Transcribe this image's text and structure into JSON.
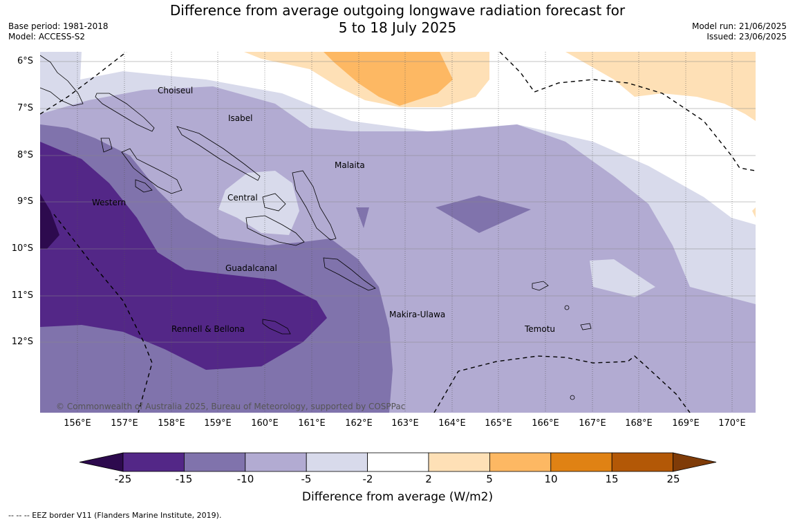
{
  "header": {
    "title_line1": "Difference from average outgoing longwave radiation forecast for",
    "title_line2": "5 to 18 July 2025",
    "base_period": "Base period: 1981-2018",
    "model": "Model: ACCESS-S2",
    "model_run": "Model run: 21/06/2025",
    "issued": "Issued: 23/06/2025"
  },
  "map": {
    "latitude_labels": [
      "6°S",
      "7°S",
      "8°S",
      "9°S",
      "10°S",
      "11°S",
      "12°S"
    ],
    "longitude_labels": [
      "156°E",
      "157°E",
      "158°E",
      "159°E",
      "160°E",
      "161°E",
      "162°E",
      "163°E",
      "164°E",
      "165°E",
      "166°E",
      "167°E",
      "168°E",
      "169°E",
      "170°E"
    ],
    "regions": {
      "choiseul": "Choiseul",
      "isabel": "Isabel",
      "malaita": "Malaita",
      "western": "Western",
      "central": "Central",
      "guadalcanal": "Guadalcanal",
      "rennell": "Rennell & Bellona",
      "makira": "Makira-Ulawa",
      "temotu": "Temotu"
    },
    "copyright": "© Commonwealth of Australia 2025, Bureau of Meteorology, supported by COSPPac"
  },
  "colorbar": {
    "labels": [
      "-25",
      "-15",
      "-10",
      "-5",
      "-2",
      "2",
      "5",
      "10",
      "15",
      "25"
    ],
    "colors": [
      "#2d0a4e",
      "#532787",
      "#8073ac",
      "#b2abd2",
      "#d8daeb",
      "#ffffff",
      "#fee0b6",
      "#fdb863",
      "#e08214",
      "#b35806",
      "#7f3b08"
    ],
    "title": "Difference from average (W/m2)"
  },
  "legend": {
    "eez": "--  --  -- EEZ border V11 (Flanders Marine Institute, 2019)."
  }
}
